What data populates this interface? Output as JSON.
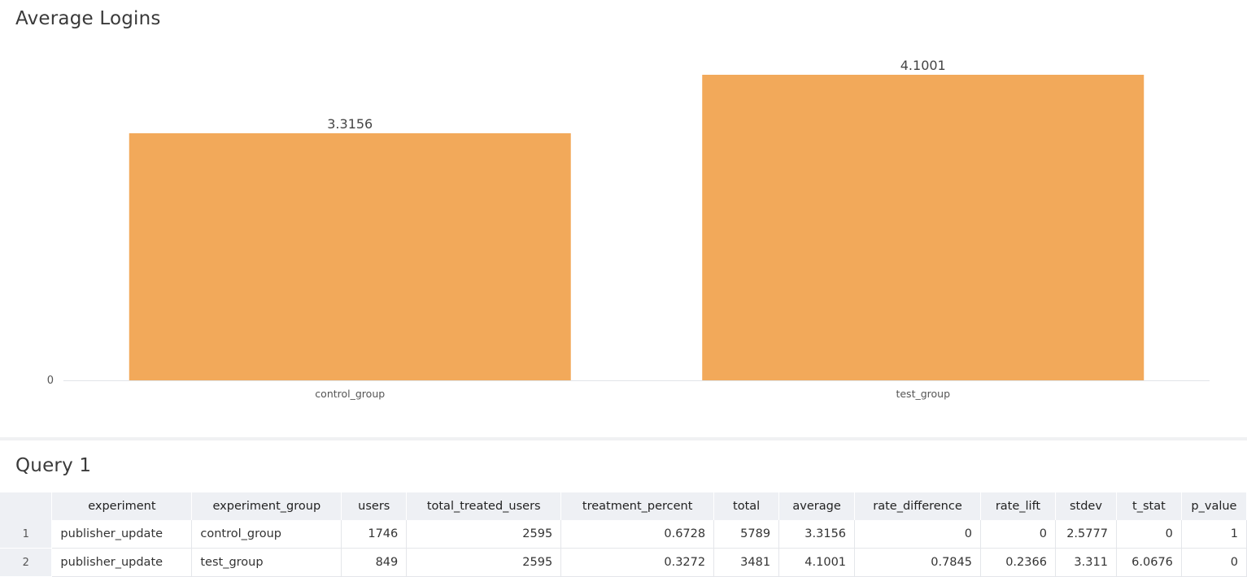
{
  "chart_panel": {
    "title": "Average Logins"
  },
  "chart_data": {
    "type": "bar",
    "title": "Average Logins",
    "categories": [
      "control_group",
      "test_group"
    ],
    "values": [
      3.3156,
      4.1001
    ],
    "data_labels": [
      "3.3156",
      "4.1001"
    ],
    "y_ticks": [
      "0"
    ],
    "ylim": [
      0,
      4.1001
    ],
    "xlabel": "",
    "ylabel": "",
    "grid": false,
    "bar_color": "#f2a95a"
  },
  "query_panel": {
    "title": "Query 1",
    "columns": [
      "",
      "experiment",
      "experiment_group",
      "users",
      "total_treated_users",
      "treatment_percent",
      "total",
      "average",
      "rate_difference",
      "rate_lift",
      "stdev",
      "t_stat",
      "p_value"
    ],
    "rows": [
      [
        "1",
        "publisher_update",
        "control_group",
        "1746",
        "2595",
        "0.6728",
        "5789",
        "3.3156",
        "0",
        "0",
        "2.5777",
        "0",
        "1"
      ],
      [
        "2",
        "publisher_update",
        "test_group",
        "849",
        "2595",
        "0.3272",
        "3481",
        "4.1001",
        "0.7845",
        "0.2366",
        "3.311",
        "6.0676",
        "0"
      ]
    ]
  }
}
